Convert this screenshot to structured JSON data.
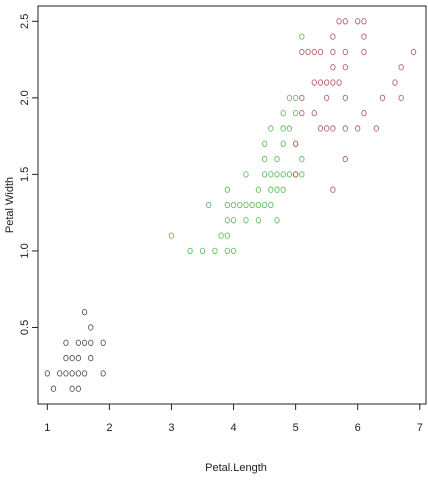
{
  "chart_data": {
    "type": "scatter",
    "title": "",
    "xlabel": "Petal.Length",
    "ylabel": "Petal Width",
    "xlim": [
      0.85,
      7.1
    ],
    "ylim": [
      0.0,
      2.6
    ],
    "x_ticks": [
      "1",
      "2",
      "3",
      "4",
      "5",
      "6",
      "7"
    ],
    "y_ticks": [
      "0.5",
      "1.0",
      "1.5",
      "2.0",
      "2.5"
    ],
    "grid": false,
    "legend": "none",
    "series": [
      {
        "color": "#555555",
        "points": [
          [
            1.0,
            0.2
          ],
          [
            1.1,
            0.1
          ],
          [
            1.2,
            0.2
          ],
          [
            1.3,
            0.2
          ],
          [
            1.4,
            0.2
          ],
          [
            1.5,
            0.2
          ],
          [
            1.6,
            0.2
          ],
          [
            1.9,
            0.2
          ],
          [
            1.3,
            0.3
          ],
          [
            1.4,
            0.3
          ],
          [
            1.5,
            0.3
          ],
          [
            1.7,
            0.3
          ],
          [
            1.3,
            0.4
          ],
          [
            1.5,
            0.4
          ],
          [
            1.6,
            0.4
          ],
          [
            1.7,
            0.4
          ],
          [
            1.9,
            0.4
          ],
          [
            1.6,
            0.6
          ],
          [
            1.7,
            0.5
          ],
          [
            1.4,
            0.1
          ],
          [
            1.5,
            0.1
          ]
        ]
      },
      {
        "color": "#5fbf5f",
        "points": [
          [
            3.0,
            1.1
          ],
          [
            3.3,
            1.0
          ],
          [
            3.5,
            1.0
          ],
          [
            3.7,
            1.0
          ],
          [
            3.9,
            1.0
          ],
          [
            4.0,
            1.0
          ],
          [
            3.8,
            1.1
          ],
          [
            3.9,
            1.1
          ],
          [
            3.9,
            1.2
          ],
          [
            4.0,
            1.2
          ],
          [
            4.2,
            1.2
          ],
          [
            4.4,
            1.2
          ],
          [
            4.7,
            1.2
          ],
          [
            3.6,
            1.3
          ],
          [
            3.9,
            1.3
          ],
          [
            4.0,
            1.3
          ],
          [
            4.1,
            1.3
          ],
          [
            4.2,
            1.3
          ],
          [
            4.3,
            1.3
          ],
          [
            4.4,
            1.3
          ],
          [
            4.5,
            1.3
          ],
          [
            4.6,
            1.3
          ],
          [
            3.9,
            1.4
          ],
          [
            4.4,
            1.4
          ],
          [
            4.6,
            1.4
          ],
          [
            4.7,
            1.4
          ],
          [
            4.8,
            1.4
          ],
          [
            4.2,
            1.5
          ],
          [
            4.5,
            1.5
          ],
          [
            4.6,
            1.5
          ],
          [
            4.7,
            1.5
          ],
          [
            4.8,
            1.5
          ],
          [
            4.9,
            1.5
          ],
          [
            5.0,
            1.5
          ],
          [
            5.1,
            1.5
          ],
          [
            4.5,
            1.6
          ],
          [
            4.7,
            1.6
          ],
          [
            5.1,
            1.6
          ],
          [
            4.5,
            1.7
          ],
          [
            4.8,
            1.7
          ],
          [
            5.0,
            1.7
          ],
          [
            4.6,
            1.8
          ],
          [
            4.8,
            1.8
          ],
          [
            4.9,
            1.8
          ],
          [
            4.8,
            1.9
          ],
          [
            5.0,
            1.9
          ],
          [
            4.9,
            2.0
          ],
          [
            5.0,
            2.0
          ],
          [
            5.1,
            2.4
          ]
        ]
      },
      {
        "color": "#b5606a",
        "points": [
          [
            5.0,
            1.5
          ],
          [
            5.6,
            1.4
          ],
          [
            5.8,
            1.6
          ],
          [
            5.0,
            1.7
          ],
          [
            5.4,
            1.8
          ],
          [
            5.5,
            1.8
          ],
          [
            5.6,
            1.8
          ],
          [
            5.8,
            1.8
          ],
          [
            6.0,
            1.8
          ],
          [
            6.3,
            1.8
          ],
          [
            5.1,
            1.9
          ],
          [
            5.3,
            1.9
          ],
          [
            6.1,
            1.9
          ],
          [
            5.1,
            2.0
          ],
          [
            5.5,
            2.0
          ],
          [
            5.8,
            2.0
          ],
          [
            6.4,
            2.0
          ],
          [
            6.7,
            2.0
          ],
          [
            5.3,
            2.1
          ],
          [
            5.4,
            2.1
          ],
          [
            5.5,
            2.1
          ],
          [
            5.6,
            2.1
          ],
          [
            5.7,
            2.1
          ],
          [
            6.6,
            2.1
          ],
          [
            5.6,
            2.2
          ],
          [
            5.8,
            2.2
          ],
          [
            6.7,
            2.2
          ],
          [
            5.1,
            2.3
          ],
          [
            5.2,
            2.3
          ],
          [
            5.3,
            2.3
          ],
          [
            5.4,
            2.3
          ],
          [
            5.6,
            2.3
          ],
          [
            5.8,
            2.3
          ],
          [
            6.1,
            2.3
          ],
          [
            6.9,
            2.3
          ],
          [
            5.6,
            2.4
          ],
          [
            6.1,
            2.4
          ],
          [
            5.7,
            2.5
          ],
          [
            5.8,
            2.5
          ],
          [
            6.0,
            2.5
          ],
          [
            6.1,
            2.5
          ]
        ]
      }
    ]
  }
}
